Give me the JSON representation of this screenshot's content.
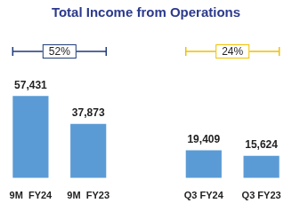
{
  "chart_data": {
    "type": "bar",
    "title": "Total Income from Operations",
    "categories": [
      "9M  FY24",
      "9M  FY23",
      null,
      "Q3 FY24",
      "Q3 FY23"
    ],
    "values": [
      57431,
      37873,
      null,
      19409,
      15624
    ],
    "value_labels": [
      "57,431",
      "37,873",
      null,
      "19,409",
      "15,624"
    ],
    "color": "#5b9bd5",
    "ylim": [
      0,
      80000
    ],
    "grid": false,
    "data_labels": true,
    "tick_labels": "x",
    "annotations": [
      {
        "text": "52%",
        "color": "#1f3a78",
        "categories": [
          "9M  FY24",
          "9M  FY23"
        ]
      },
      {
        "text": "24%",
        "color": "#f0c000",
        "categories": [
          "Q3 FY24",
          "Q3 FY23"
        ]
      }
    ]
  }
}
